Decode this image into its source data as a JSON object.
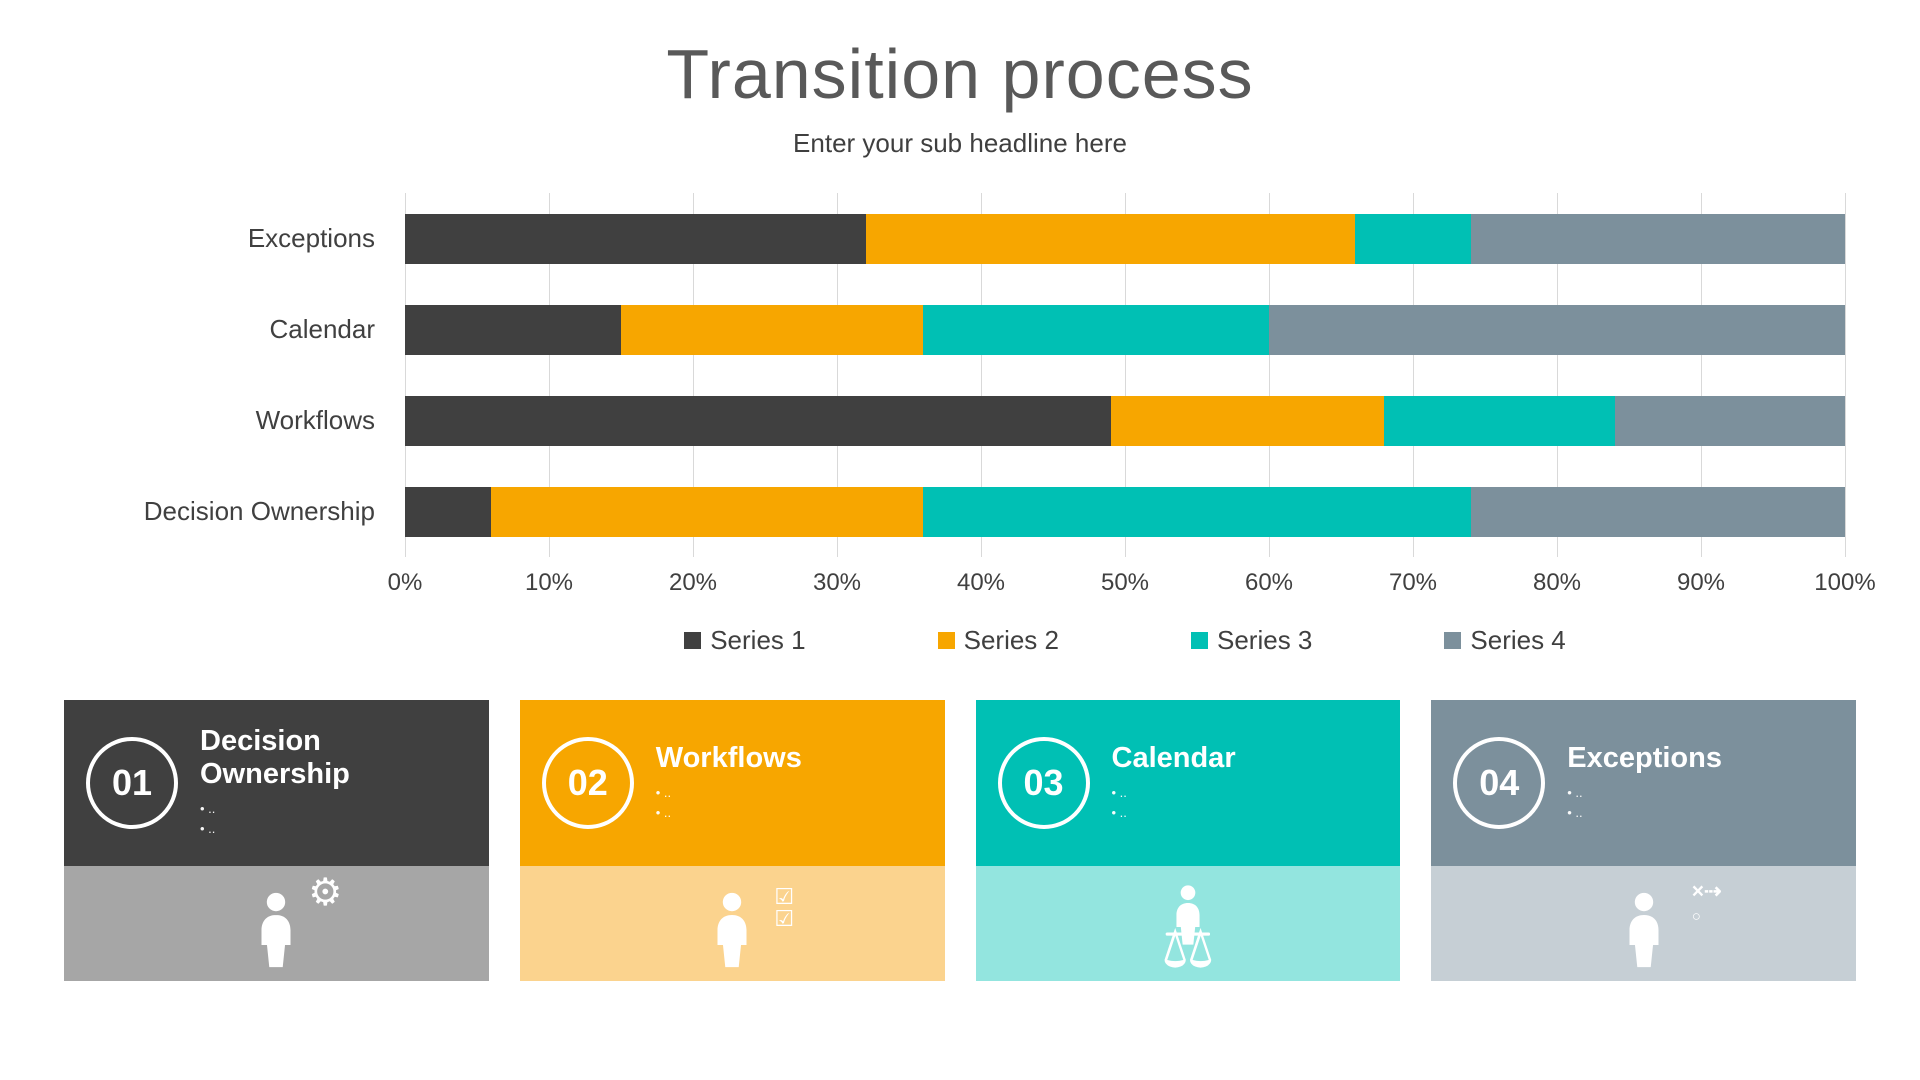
{
  "slide": {
    "title": "Transition process",
    "subtitle": "Enter your sub headline here"
  },
  "chart_data": {
    "type": "bar",
    "variant": "horizontal-stacked",
    "title": "",
    "categories": [
      "Exceptions",
      "Calendar",
      "Workflows",
      "Decision Ownership"
    ],
    "series": [
      {
        "name": "Series 1",
        "color": "#404040",
        "values": [
          32,
          15,
          49,
          6
        ]
      },
      {
        "name": "Series 2",
        "color": "#F7A600",
        "values": [
          34,
          21,
          19,
          30
        ]
      },
      {
        "name": "Series 3",
        "color": "#00C0B4",
        "values": [
          8,
          24,
          16,
          38
        ]
      },
      {
        "name": "Series 4",
        "color": "#7C909C",
        "values": [
          26,
          40,
          16,
          26
        ]
      }
    ],
    "x_ticks": [
      "0%",
      "10%",
      "20%",
      "30%",
      "40%",
      "50%",
      "60%",
      "70%",
      "80%",
      "90%",
      "100%"
    ],
    "xlim": [
      0,
      100
    ],
    "grid": true,
    "legend_position": "bottom-center"
  },
  "cards": [
    {
      "number": "01",
      "title": "Decision Ownership",
      "bullets": [
        "..",
        ".."
      ],
      "color": "#404040",
      "light_color": "#A6A6A6",
      "icon": "person-gear"
    },
    {
      "number": "02",
      "title": "Workflows",
      "bullets": [
        "..",
        ".."
      ],
      "color": "#F7A600",
      "light_color": "#FBD38E",
      "icon": "person-checklist"
    },
    {
      "number": "03",
      "title": "Calendar",
      "bullets": [
        "..",
        ".."
      ],
      "color": "#00C0B4",
      "light_color": "#93E5DF",
      "icon": "person-scales"
    },
    {
      "number": "04",
      "title": "Exceptions",
      "bullets": [
        "..",
        ".."
      ],
      "color": "#7C909C",
      "light_color": "#C6CFD5",
      "icon": "person-strategy"
    }
  ]
}
